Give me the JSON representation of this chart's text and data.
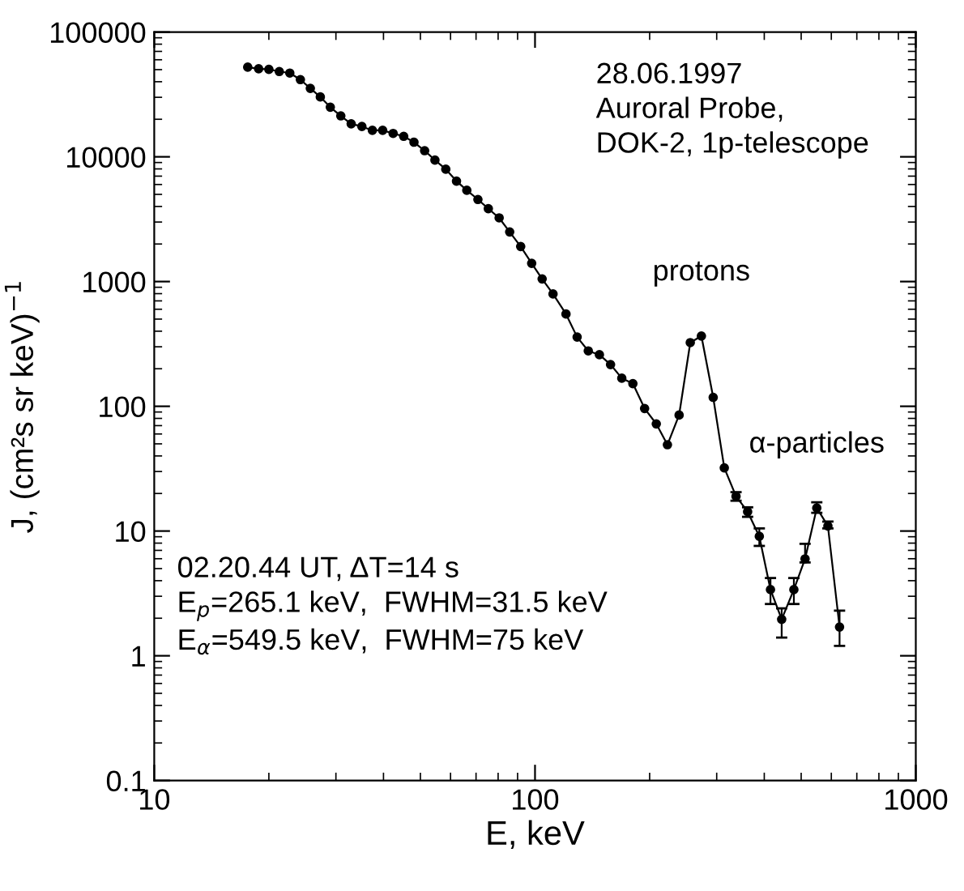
{
  "chart_data": {
    "type": "line",
    "xlabel": "E, keV",
    "ylabel": "J, (cm²s sr keV)$^{−1}$",
    "log": "xy",
    "xlim": [
      10,
      1000
    ],
    "xticks": [
      10,
      100,
      1000
    ],
    "ylim": [
      0.1,
      100000
    ],
    "yticks": [
      0.1,
      1,
      10,
      100,
      1000,
      10000,
      100000
    ],
    "grid": false,
    "marker": "circle",
    "line_style": "solid",
    "annotations": [
      "28.06.1997\nAuroral Probe,\nDOK-2, 1p-telescope",
      "02.20.44 UT, ΔT=14 s\nE$_{p}$=265.1 keV,  FWHM=31.5 keV\nE$_{α}$=549.5 keV,  FWHM=75 keV",
      {
        "text": "protons",
        "x": 273.5,
        "y": 366
      },
      {
        "text": "α-particles",
        "x": 549.5,
        "y": 15.3
      }
    ],
    "series": [
      {
        "color": "#000000",
        "x": [
          17.6,
          18.8,
          20.0,
          21.3,
          22.7,
          24.2,
          25.7,
          27.3,
          29.0,
          30.9,
          32.9,
          35.1,
          37.4,
          39.8,
          42.4,
          45.2,
          48.1,
          51.3,
          54.6,
          58.3,
          62.2,
          66.2,
          70.8,
          75.4,
          80.5,
          85.8,
          91.7,
          98.0,
          104.4,
          111.5,
          120.6,
          129.0,
          138.0,
          147.6,
          157.9,
          169.0,
          180.7,
          194.0,
          208.2,
          222.7,
          239.0,
          255.7,
          273.5,
          293.7,
          314.1,
          337.2,
          361.7,
          388.2,
          415.3,
          444.4,
          478.4,
          511.9,
          549.5,
          587.7,
          630.6
        ],
        "values": [
          52300,
          50800,
          50300,
          48300,
          46900,
          41600,
          35400,
          30200,
          25000,
          21300,
          18400,
          17500,
          16300,
          16300,
          15400,
          14600,
          13100,
          11200,
          9420,
          7950,
          6390,
          5390,
          4550,
          3840,
          3240,
          2500,
          1910,
          1400,
          1050,
          795,
          549,
          359,
          278,
          259,
          216,
          168,
          152,
          96.0,
          72.3,
          49.2,
          85.1,
          324,
          366,
          118,
          32.1,
          19.0,
          14.3,
          9.06,
          3.39,
          1.96,
          3.39,
          5.98,
          15.3,
          10.98,
          1.7
        ],
        "errors": [
          null,
          null,
          null,
          null,
          null,
          null,
          null,
          null,
          null,
          null,
          null,
          null,
          null,
          null,
          null,
          null,
          null,
          null,
          null,
          null,
          null,
          null,
          null,
          null,
          null,
          null,
          null,
          null,
          null,
          null,
          null,
          null,
          null,
          null,
          null,
          null,
          null,
          null,
          null,
          null,
          null,
          null,
          null,
          null,
          null,
          [
            17.5,
            20.5
          ],
          [
            13,
            15.5
          ],
          [
            7.6,
            10.5
          ],
          [
            2.6,
            4.2
          ],
          [
            1.4,
            2.4
          ],
          [
            2.6,
            4.2
          ],
          [
            5.6,
            7.9
          ],
          [
            14,
            17
          ],
          [
            10.5,
            11.9
          ],
          [
            1.2,
            2.3
          ]
        ]
      }
    ]
  }
}
